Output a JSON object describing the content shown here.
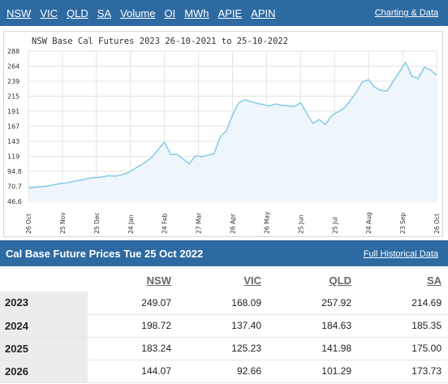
{
  "nav": {
    "links": [
      "NSW",
      "VIC",
      "QLD",
      "SA",
      "Volume",
      "OI",
      "MWh",
      "APIE",
      "APIN"
    ],
    "charting_link": "Charting & Data"
  },
  "chart_data": {
    "type": "area",
    "title": "NSW Base Cal Futures 2023 26-10-2021 to 25-10-2022",
    "y_ticks": [
      "46.6",
      "70.7",
      "94.8",
      "119",
      "143",
      "167",
      "191",
      "215",
      "239",
      "264",
      "288"
    ],
    "ylim": [
      46.6,
      288
    ],
    "x_ticks": [
      "26 Oct",
      "25 Nov",
      "25 Dec",
      "24 Jan",
      "24 Feb",
      "27 Mar",
      "26 Apr",
      "26 May",
      "25 Jun",
      "25 Jul",
      "24 Aug",
      "23 Sep",
      "26 Oct"
    ],
    "x": [
      "26 Oct",
      "1 Nov",
      "8 Nov",
      "15 Nov",
      "22 Nov",
      "29 Nov",
      "6 Dec",
      "13 Dec",
      "20 Dec",
      "27 Dec",
      "3 Jan",
      "10 Jan",
      "17 Jan",
      "24 Jan",
      "31 Jan",
      "7 Feb",
      "14 Feb",
      "21 Feb",
      "28 Feb",
      "7 Mar",
      "14 Mar",
      "18 Mar",
      "21 Mar",
      "24 Mar",
      "27 Mar",
      "31 Mar",
      "4 Apr",
      "8 Apr",
      "12 Apr",
      "16 Apr",
      "20 Apr",
      "26 Apr",
      "1 May",
      "5 May",
      "9 May",
      "13 May",
      "17 May",
      "21 May",
      "26 May",
      "1 Jun",
      "8 Jun",
      "15 Jun",
      "20 Jun",
      "25 Jun",
      "30 Jun",
      "4 Jul",
      "9 Jul",
      "14 Jul",
      "18 Jul",
      "22 Jul",
      "25 Jul",
      "1 Aug",
      "8 Aug",
      "15 Aug",
      "24 Aug",
      "31 Aug",
      "6 Sep",
      "12 Sep",
      "17 Sep",
      "23 Sep",
      "28 Sep",
      "3 Oct",
      "7 Oct",
      "12 Oct",
      "16 Oct",
      "20 Oct",
      "25 Oct"
    ],
    "series": [
      {
        "values": [
          68,
          69,
          70,
          71,
          73,
          75,
          76,
          78,
          80,
          82,
          84,
          85,
          86,
          88,
          87,
          89,
          92,
          98,
          104,
          110,
          118,
          130,
          142,
          122,
          122,
          115,
          107,
          120,
          118,
          121,
          123,
          150,
          160,
          185,
          205,
          210,
          207,
          204,
          202,
          200,
          203,
          201,
          200,
          199,
          205,
          188,
          172,
          178,
          170,
          184,
          190,
          196,
          208,
          222,
          239,
          242,
          230,
          225,
          224,
          240,
          255,
          270,
          248,
          244,
          262,
          258,
          249.07
        ]
      }
    ],
    "grid": true,
    "line_color": "#8ecbe6",
    "fill_color": "#eef6fc"
  },
  "section": {
    "title": "Cal Base Future Prices Tue 25 Oct 2022",
    "historical_link": "Full Historical Data"
  },
  "table": {
    "columns": [
      "NSW",
      "VIC",
      "QLD",
      "SA"
    ],
    "rows": [
      {
        "year": "2023",
        "values": [
          "249.07",
          "168.09",
          "257.92",
          "214.69"
        ]
      },
      {
        "year": "2024",
        "values": [
          "198.72",
          "137.40",
          "184.63",
          "185.35"
        ]
      },
      {
        "year": "2025",
        "values": [
          "183.24",
          "125.23",
          "141.98",
          "175.00"
        ]
      },
      {
        "year": "2026",
        "values": [
          "144.07",
          "92.66",
          "101.29",
          "173.73"
        ]
      }
    ]
  }
}
